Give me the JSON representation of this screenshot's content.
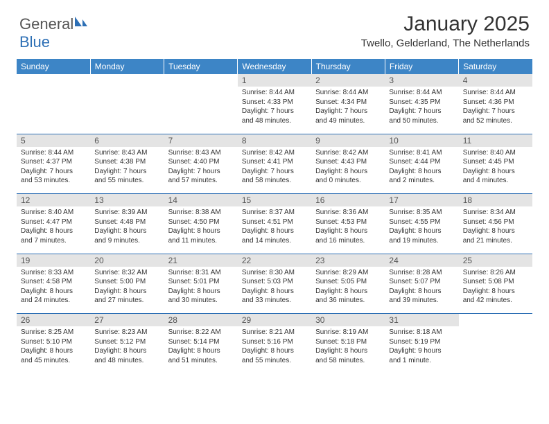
{
  "logo": {
    "text1": "General",
    "text2": "Blue"
  },
  "title": "January 2025",
  "location": "Twello, Gelderland, The Netherlands",
  "day_headers": [
    "Sunday",
    "Monday",
    "Tuesday",
    "Wednesday",
    "Thursday",
    "Friday",
    "Saturday"
  ],
  "colors": {
    "header_bg": "#3d85c6",
    "header_text": "#ffffff",
    "rule": "#2d6fb5",
    "daynum_bg": "#e4e4e4",
    "body_text": "#333333"
  },
  "weeks": [
    [
      null,
      null,
      null,
      {
        "n": "1",
        "sr": "Sunrise: 8:44 AM",
        "ss": "Sunset: 4:33 PM",
        "d1": "Daylight: 7 hours",
        "d2": "and 48 minutes."
      },
      {
        "n": "2",
        "sr": "Sunrise: 8:44 AM",
        "ss": "Sunset: 4:34 PM",
        "d1": "Daylight: 7 hours",
        "d2": "and 49 minutes."
      },
      {
        "n": "3",
        "sr": "Sunrise: 8:44 AM",
        "ss": "Sunset: 4:35 PM",
        "d1": "Daylight: 7 hours",
        "d2": "and 50 minutes."
      },
      {
        "n": "4",
        "sr": "Sunrise: 8:44 AM",
        "ss": "Sunset: 4:36 PM",
        "d1": "Daylight: 7 hours",
        "d2": "and 52 minutes."
      }
    ],
    [
      {
        "n": "5",
        "sr": "Sunrise: 8:44 AM",
        "ss": "Sunset: 4:37 PM",
        "d1": "Daylight: 7 hours",
        "d2": "and 53 minutes."
      },
      {
        "n": "6",
        "sr": "Sunrise: 8:43 AM",
        "ss": "Sunset: 4:38 PM",
        "d1": "Daylight: 7 hours",
        "d2": "and 55 minutes."
      },
      {
        "n": "7",
        "sr": "Sunrise: 8:43 AM",
        "ss": "Sunset: 4:40 PM",
        "d1": "Daylight: 7 hours",
        "d2": "and 57 minutes."
      },
      {
        "n": "8",
        "sr": "Sunrise: 8:42 AM",
        "ss": "Sunset: 4:41 PM",
        "d1": "Daylight: 7 hours",
        "d2": "and 58 minutes."
      },
      {
        "n": "9",
        "sr": "Sunrise: 8:42 AM",
        "ss": "Sunset: 4:43 PM",
        "d1": "Daylight: 8 hours",
        "d2": "and 0 minutes."
      },
      {
        "n": "10",
        "sr": "Sunrise: 8:41 AM",
        "ss": "Sunset: 4:44 PM",
        "d1": "Daylight: 8 hours",
        "d2": "and 2 minutes."
      },
      {
        "n": "11",
        "sr": "Sunrise: 8:40 AM",
        "ss": "Sunset: 4:45 PM",
        "d1": "Daylight: 8 hours",
        "d2": "and 4 minutes."
      }
    ],
    [
      {
        "n": "12",
        "sr": "Sunrise: 8:40 AM",
        "ss": "Sunset: 4:47 PM",
        "d1": "Daylight: 8 hours",
        "d2": "and 7 minutes."
      },
      {
        "n": "13",
        "sr": "Sunrise: 8:39 AM",
        "ss": "Sunset: 4:48 PM",
        "d1": "Daylight: 8 hours",
        "d2": "and 9 minutes."
      },
      {
        "n": "14",
        "sr": "Sunrise: 8:38 AM",
        "ss": "Sunset: 4:50 PM",
        "d1": "Daylight: 8 hours",
        "d2": "and 11 minutes."
      },
      {
        "n": "15",
        "sr": "Sunrise: 8:37 AM",
        "ss": "Sunset: 4:51 PM",
        "d1": "Daylight: 8 hours",
        "d2": "and 14 minutes."
      },
      {
        "n": "16",
        "sr": "Sunrise: 8:36 AM",
        "ss": "Sunset: 4:53 PM",
        "d1": "Daylight: 8 hours",
        "d2": "and 16 minutes."
      },
      {
        "n": "17",
        "sr": "Sunrise: 8:35 AM",
        "ss": "Sunset: 4:55 PM",
        "d1": "Daylight: 8 hours",
        "d2": "and 19 minutes."
      },
      {
        "n": "18",
        "sr": "Sunrise: 8:34 AM",
        "ss": "Sunset: 4:56 PM",
        "d1": "Daylight: 8 hours",
        "d2": "and 21 minutes."
      }
    ],
    [
      {
        "n": "19",
        "sr": "Sunrise: 8:33 AM",
        "ss": "Sunset: 4:58 PM",
        "d1": "Daylight: 8 hours",
        "d2": "and 24 minutes."
      },
      {
        "n": "20",
        "sr": "Sunrise: 8:32 AM",
        "ss": "Sunset: 5:00 PM",
        "d1": "Daylight: 8 hours",
        "d2": "and 27 minutes."
      },
      {
        "n": "21",
        "sr": "Sunrise: 8:31 AM",
        "ss": "Sunset: 5:01 PM",
        "d1": "Daylight: 8 hours",
        "d2": "and 30 minutes."
      },
      {
        "n": "22",
        "sr": "Sunrise: 8:30 AM",
        "ss": "Sunset: 5:03 PM",
        "d1": "Daylight: 8 hours",
        "d2": "and 33 minutes."
      },
      {
        "n": "23",
        "sr": "Sunrise: 8:29 AM",
        "ss": "Sunset: 5:05 PM",
        "d1": "Daylight: 8 hours",
        "d2": "and 36 minutes."
      },
      {
        "n": "24",
        "sr": "Sunrise: 8:28 AM",
        "ss": "Sunset: 5:07 PM",
        "d1": "Daylight: 8 hours",
        "d2": "and 39 minutes."
      },
      {
        "n": "25",
        "sr": "Sunrise: 8:26 AM",
        "ss": "Sunset: 5:08 PM",
        "d1": "Daylight: 8 hours",
        "d2": "and 42 minutes."
      }
    ],
    [
      {
        "n": "26",
        "sr": "Sunrise: 8:25 AM",
        "ss": "Sunset: 5:10 PM",
        "d1": "Daylight: 8 hours",
        "d2": "and 45 minutes."
      },
      {
        "n": "27",
        "sr": "Sunrise: 8:23 AM",
        "ss": "Sunset: 5:12 PM",
        "d1": "Daylight: 8 hours",
        "d2": "and 48 minutes."
      },
      {
        "n": "28",
        "sr": "Sunrise: 8:22 AM",
        "ss": "Sunset: 5:14 PM",
        "d1": "Daylight: 8 hours",
        "d2": "and 51 minutes."
      },
      {
        "n": "29",
        "sr": "Sunrise: 8:21 AM",
        "ss": "Sunset: 5:16 PM",
        "d1": "Daylight: 8 hours",
        "d2": "and 55 minutes."
      },
      {
        "n": "30",
        "sr": "Sunrise: 8:19 AM",
        "ss": "Sunset: 5:18 PM",
        "d1": "Daylight: 8 hours",
        "d2": "and 58 minutes."
      },
      {
        "n": "31",
        "sr": "Sunrise: 8:18 AM",
        "ss": "Sunset: 5:19 PM",
        "d1": "Daylight: 9 hours",
        "d2": "and 1 minute."
      },
      null
    ]
  ]
}
